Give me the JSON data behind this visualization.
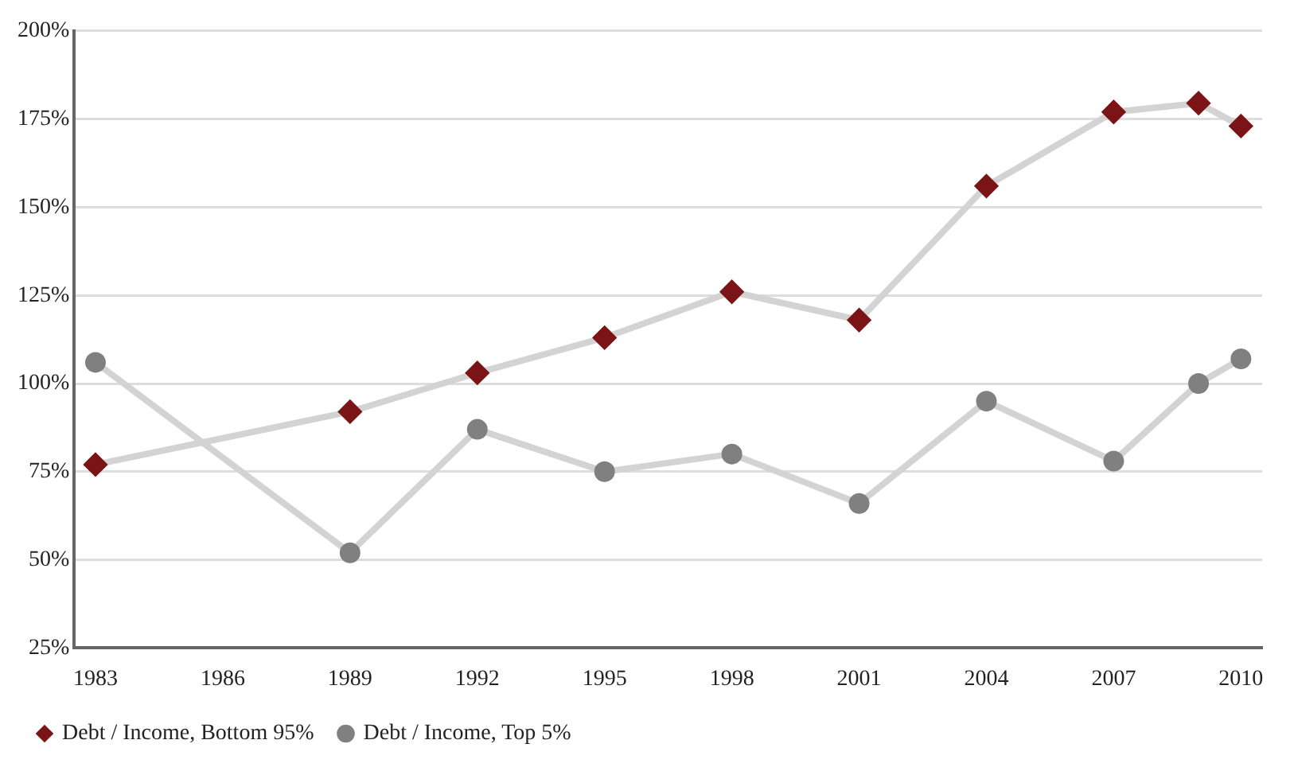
{
  "chart_data": {
    "type": "line",
    "x": [
      1983,
      1989,
      1992,
      1995,
      1998,
      2001,
      2004,
      2007,
      2009,
      2010
    ],
    "series": [
      {
        "name": "Debt / Income, Bottom 95%",
        "color": "#7b1416",
        "marker": "diamond",
        "values": [
          77,
          92,
          103,
          113,
          126,
          118,
          156,
          177,
          179.5,
          173
        ]
      },
      {
        "name": "Debt / Income, Top 5%",
        "color": "#808080",
        "marker": "circle",
        "values": [
          106,
          52,
          87,
          75,
          80,
          66,
          95,
          78,
          100,
          107
        ]
      }
    ],
    "xlim": [
      1982.5,
      2010.5
    ],
    "xticks": [
      1983,
      1986,
      1989,
      1992,
      1995,
      1998,
      2001,
      2004,
      2007,
      2010
    ],
    "ylim": [
      25,
      200
    ],
    "yticks": [
      {
        "value": 25,
        "label": "25%"
      },
      {
        "value": 50,
        "label": "50%"
      },
      {
        "value": 75,
        "label": "75%"
      },
      {
        "value": 100,
        "label": "100%"
      },
      {
        "value": 125,
        "label": "125%"
      },
      {
        "value": 150,
        "label": "150%"
      },
      {
        "value": 175,
        "label": "175%"
      },
      {
        "value": 200,
        "label": "200%"
      }
    ],
    "grid": "y",
    "legend": "bottom",
    "line_style": "solid"
  }
}
